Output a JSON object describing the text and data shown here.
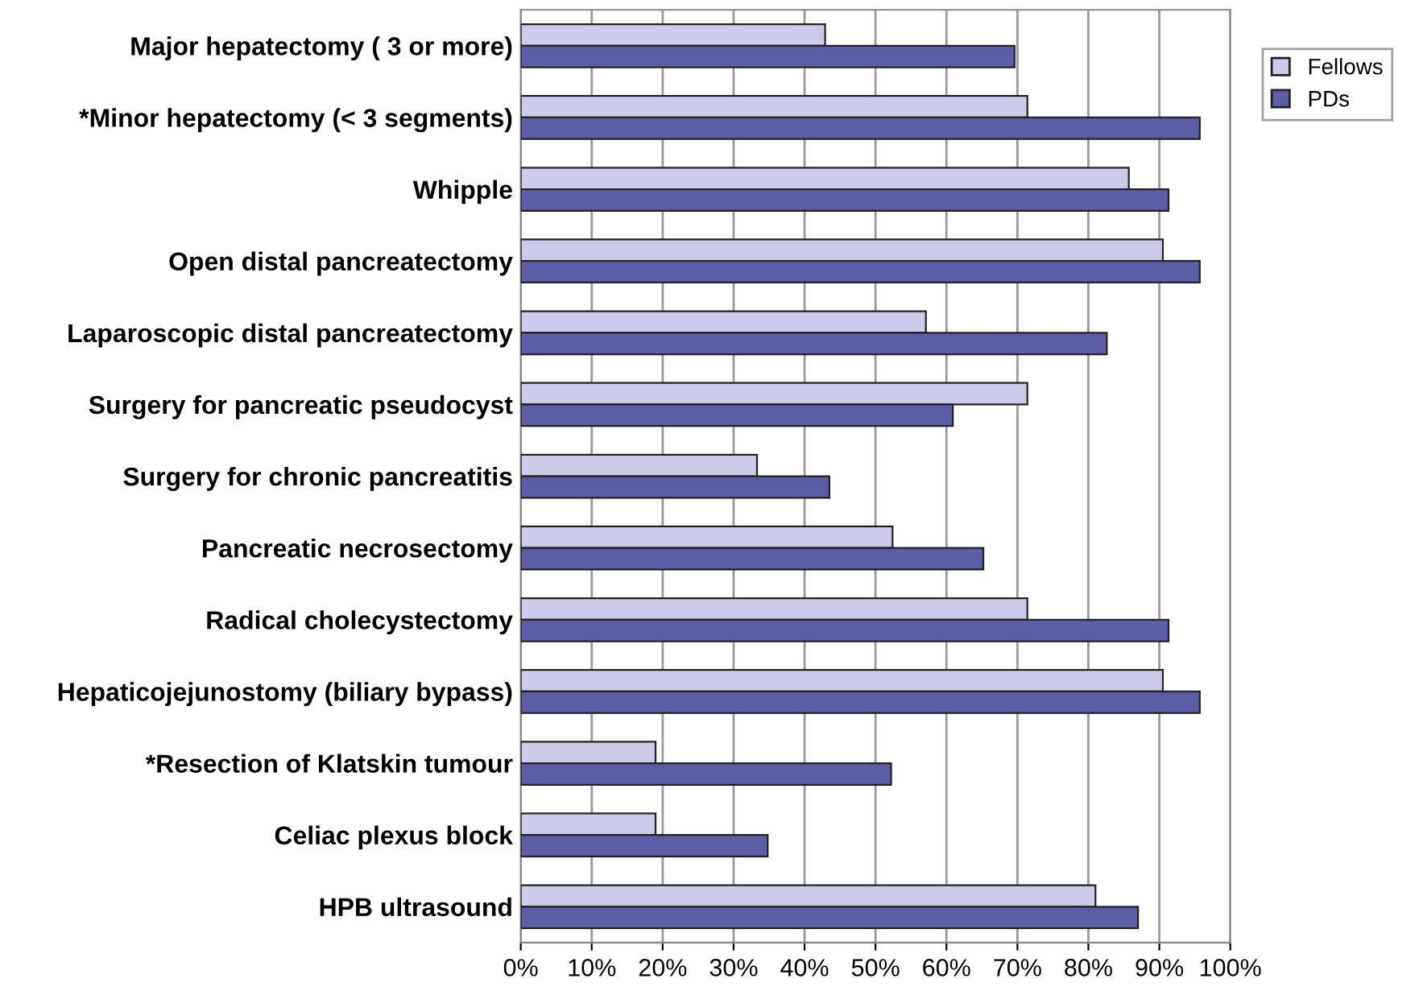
{
  "chart_data": {
    "type": "bar",
    "orientation": "horizontal",
    "categories": [
      "Major hepatectomy ( 3 or more)",
      "*Minor hepatectomy (< 3 segments)",
      "Whipple",
      "Open distal pancreatectomy",
      "Laparoscopic distal pancreatectomy",
      "Surgery for pancreatic pseudocyst",
      "Surgery for chronic pancreatitis",
      "Pancreatic necrosectomy",
      "Radical cholecystectomy",
      "Hepaticojejunostomy (biliary bypass)",
      "*Resection of Klatskin tumour",
      "Celiac plexus block",
      "HPB ultrasound"
    ],
    "series": [
      {
        "name": "Fellows",
        "color": "#ccccea",
        "values": [
          42.9,
          71.4,
          85.7,
          90.5,
          57.1,
          71.4,
          33.3,
          52.4,
          71.4,
          90.5,
          19.0,
          19.0,
          81.0
        ]
      },
      {
        "name": "PDs",
        "color": "#5b5ea6",
        "values": [
          69.6,
          95.7,
          91.3,
          95.7,
          82.6,
          60.9,
          43.5,
          65.2,
          91.3,
          95.7,
          52.2,
          34.8,
          87.0
        ]
      }
    ],
    "xlim": [
      0,
      100
    ],
    "xticks": [
      {
        "value": 0,
        "label": "0%"
      },
      {
        "value": 10,
        "label": "10%"
      },
      {
        "value": 20,
        "label": "20%"
      },
      {
        "value": 30,
        "label": "30%"
      },
      {
        "value": 40,
        "label": "40%"
      },
      {
        "value": 50,
        "label": "50%"
      },
      {
        "value": 60,
        "label": "60%"
      },
      {
        "value": 70,
        "label": "70%"
      },
      {
        "value": 80,
        "label": "80%"
      },
      {
        "value": 90,
        "label": "90%"
      },
      {
        "value": 100,
        "label": "100%"
      }
    ],
    "grid": "x",
    "legend": "top right"
  }
}
